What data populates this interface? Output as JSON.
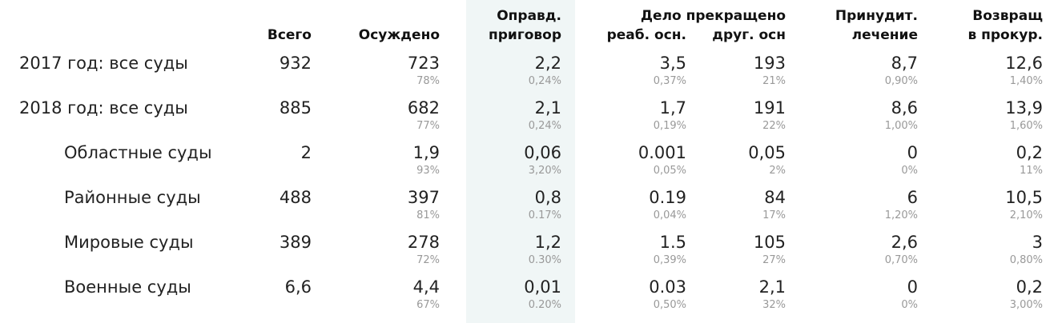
{
  "table": {
    "group_header": "Дело прекращено",
    "columns": [
      [
        "Всего"
      ],
      [
        "Осуждено"
      ],
      [
        "Оправд.",
        "приговор"
      ],
      [
        "реаб. осн."
      ],
      [
        "друг. осн"
      ],
      [
        "Принудит.",
        "лечение"
      ],
      [
        "Возвращ",
        "в прокур."
      ]
    ],
    "rows": [
      {
        "label": "2017 год: все суды",
        "total": "932",
        "cells": [
          [
            "723",
            "78%"
          ],
          [
            "2,2",
            "0,24%"
          ],
          [
            "3,5",
            "0,37%"
          ],
          [
            "193",
            "21%"
          ],
          [
            "8,7",
            "0,90%"
          ],
          [
            "12,6",
            "1,40%"
          ]
        ]
      },
      {
        "label": "2018 год: все суды",
        "total": "885",
        "cells": [
          [
            "682",
            "77%"
          ],
          [
            "2,1",
            "0,24%"
          ],
          [
            "1,7",
            "0,19%"
          ],
          [
            "191",
            "22%"
          ],
          [
            "8,6",
            "1,00%"
          ],
          [
            "13,9",
            "1,60%"
          ]
        ]
      },
      {
        "label": "Областные суды",
        "total": "2",
        "cells": [
          [
            "1,9",
            "93%"
          ],
          [
            "0,06",
            "3,20%"
          ],
          [
            "0.001",
            "0,05%"
          ],
          [
            "0,05",
            "2%"
          ],
          [
            "0",
            "0%"
          ],
          [
            "0,2",
            "11%"
          ]
        ]
      },
      {
        "label": "Районные суды",
        "total": "488",
        "cells": [
          [
            "397",
            "81%"
          ],
          [
            "0,8",
            "0.17%"
          ],
          [
            "0.19",
            "0,04%"
          ],
          [
            "84",
            "17%"
          ],
          [
            "6",
            "1,20%"
          ],
          [
            "10,5",
            "2,10%"
          ]
        ]
      },
      {
        "label": "Мировые суды",
        "total": "389",
        "cells": [
          [
            "278",
            "72%"
          ],
          [
            "1,2",
            "0.30%"
          ],
          [
            "1.5",
            "0,39%"
          ],
          [
            "105",
            "27%"
          ],
          [
            "2,6",
            "0,70%"
          ],
          [
            "3",
            "0,80%"
          ]
        ]
      },
      {
        "label": "Военные суды",
        "total": "6,6",
        "cells": [
          [
            "4,4",
            "67%"
          ],
          [
            "0,01",
            "0.20%"
          ],
          [
            "0.03",
            "0,50%"
          ],
          [
            "2,1",
            "32%"
          ],
          [
            "0",
            "0%"
          ],
          [
            "0,2",
            "3,00%"
          ]
        ]
      }
    ]
  }
}
